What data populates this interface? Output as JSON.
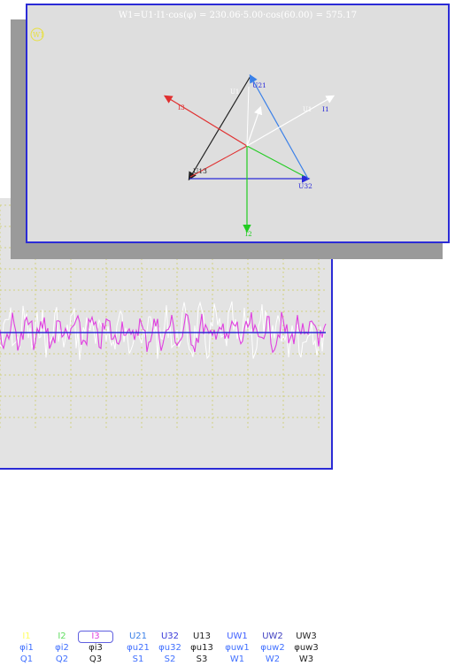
{
  "phasor_window": {
    "formula": "W1=U1·I1·cos(φ) = 230.06·5.00·cos(60.00) = 575.17",
    "badge": "W1",
    "labels": {
      "u21": "U21",
      "u32": "U32",
      "u13": "U13",
      "i1": "I1",
      "i2": "I2",
      "i3": "I3",
      "u1": "U1",
      "u1b": "U1"
    }
  },
  "legend": {
    "rows": [
      [
        "I1",
        "I2",
        "I3",
        "U21",
        "U32",
        "U13",
        "UW1",
        "UW2",
        "UW3"
      ],
      [
        "φi1",
        "φi2",
        "φi3",
        "φu21",
        "φu32",
        "φu13",
        "φuw1",
        "φuw2",
        "φuw3"
      ],
      [
        "Q1",
        "Q2",
        "Q3",
        "S1",
        "S2",
        "S3",
        "W1",
        "W2",
        "W3"
      ]
    ],
    "selected": "I3"
  },
  "colors": {
    "u21": "#3a80e8",
    "u32": "#2a2ad8",
    "u13": "#222222",
    "i1": "#ffffff",
    "i2": "#22cc22",
    "i3": "#e03030",
    "waveform_magenta": "#e040e0",
    "waveform_white": "#ffffff",
    "axis_blue": "#2b2bd6",
    "grid": "#d0d080"
  }
}
